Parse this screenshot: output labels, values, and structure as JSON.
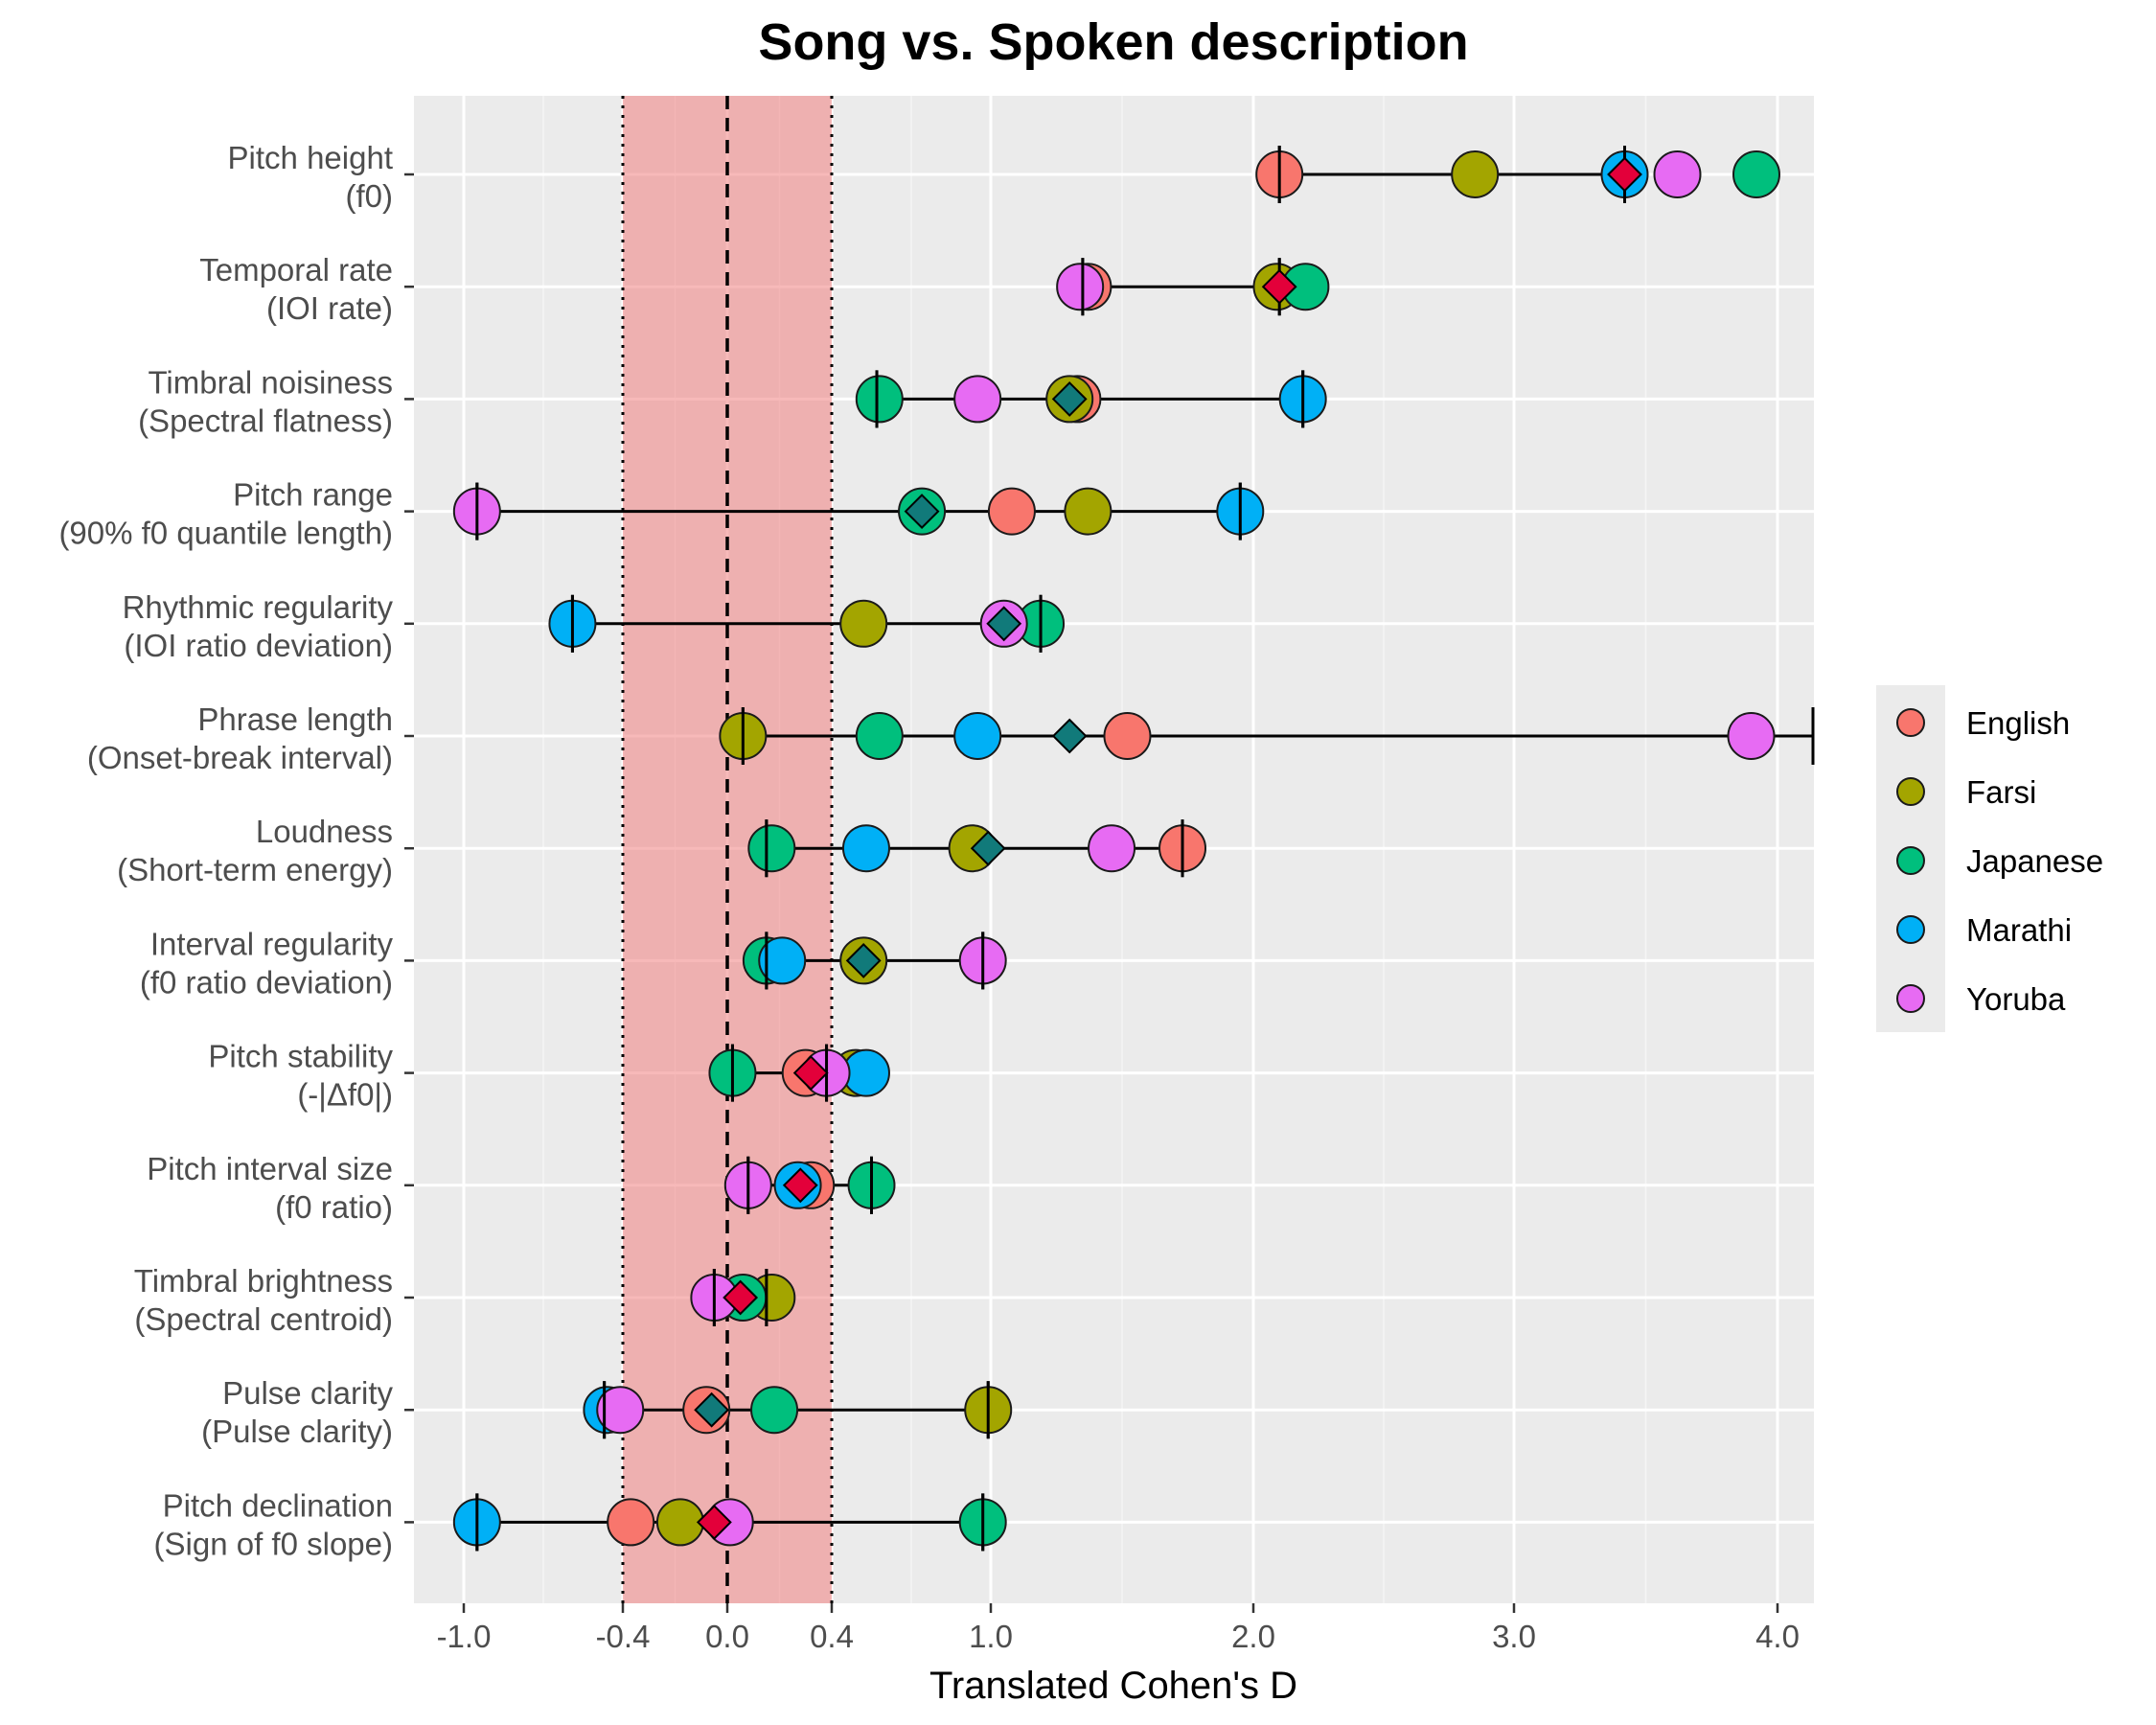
{
  "chart_data": {
    "type": "dot-range",
    "title": "Song vs. Spoken description",
    "xlabel": "Translated Cohen's D",
    "ylabel": "",
    "x_ticks": [
      {
        "v": -1.0,
        "label": "-1.0"
      },
      {
        "v": -0.4,
        "label": "-0.4"
      },
      {
        "v": 0.0,
        "label": "0.0"
      },
      {
        "v": 0.4,
        "label": "0.4"
      },
      {
        "v": 1.0,
        "label": "1.0"
      },
      {
        "v": 2.0,
        "label": "2.0"
      },
      {
        "v": 3.0,
        "label": "3.0"
      },
      {
        "v": 4.0,
        "label": "4.0"
      }
    ],
    "reference_band": [
      -0.4,
      0.4
    ],
    "grid": true,
    "legend_position": "right",
    "series": [
      {
        "name": "English",
        "color": "#F8766D"
      },
      {
        "name": "Farsi",
        "color": "#A3A500"
      },
      {
        "name": "Japanese",
        "color": "#00BF7D"
      },
      {
        "name": "Marathi",
        "color": "#00B0F6"
      },
      {
        "name": "Yoruba",
        "color": "#E76BF3"
      }
    ],
    "features": [
      {
        "line1": "Pitch height",
        "line2": "(f0)",
        "values": [
          2.1,
          2.85,
          3.92,
          3.42,
          3.62
        ],
        "ci": [
          2.1,
          3.42
        ],
        "estimate": 3.42,
        "estimate_color": "#E3003A",
        "right_open": false
      },
      {
        "line1": "Temporal rate",
        "line2": "(IOI rate)",
        "values": [
          1.37,
          2.09,
          2.2,
          null,
          1.34
        ],
        "ci": [
          1.35,
          2.1
        ],
        "estimate": 2.1,
        "estimate_color": "#E3003A",
        "right_open": false
      },
      {
        "line1": "Timbral noisiness",
        "line2": "(Spectral flatness)",
        "values": [
          1.33,
          1.3,
          0.58,
          2.19,
          0.95
        ],
        "ci": [
          0.57,
          2.19
        ],
        "estimate": 1.3,
        "estimate_color": "#117A7A",
        "right_open": false
      },
      {
        "line1": "Pitch range",
        "line2": "(90% f0 quantile length)",
        "values": [
          1.08,
          1.37,
          0.74,
          1.95,
          -0.95
        ],
        "ci": [
          -0.95,
          1.95
        ],
        "estimate": 0.74,
        "estimate_color": "#117A7A",
        "right_open": false
      },
      {
        "line1": "Rhythmic regularity",
        "line2": "(IOI ratio deviation)",
        "values": [
          null,
          0.52,
          1.19,
          -0.59,
          1.05
        ],
        "ci": [
          -0.59,
          1.19
        ],
        "estimate": 1.05,
        "estimate_color": "#117A7A",
        "right_open": false
      },
      {
        "line1": "Phrase length",
        "line2": "(Onset-break interval)",
        "values": [
          1.52,
          0.06,
          0.58,
          0.95,
          3.9
        ],
        "ci": [
          0.06,
          4.15
        ],
        "estimate": 1.3,
        "estimate_color": "#117A7A",
        "right_open": true
      },
      {
        "line1": "Loudness",
        "line2": "(Short-term energy)",
        "values": [
          1.73,
          0.93,
          0.17,
          0.53,
          1.46
        ],
        "ci": [
          0.15,
          1.73
        ],
        "estimate": 0.99,
        "estimate_color": "#117A7A",
        "right_open": false
      },
      {
        "line1": "Interval regularity",
        "line2": "(f0 ratio deviation)",
        "values": [
          null,
          0.52,
          0.15,
          0.21,
          0.97
        ],
        "ci": [
          0.15,
          0.97
        ],
        "estimate": 0.52,
        "estimate_color": "#117A7A",
        "right_open": false
      },
      {
        "line1": "Pitch stability",
        "line2": "(-|Δf0|)",
        "values": [
          0.3,
          0.49,
          0.02,
          0.53,
          0.38
        ],
        "ci": [
          0.02,
          0.38
        ],
        "estimate": 0.32,
        "estimate_color": "#E3003A",
        "right_open": false
      },
      {
        "line1": "Pitch interval size",
        "line2": "(f0 ratio)",
        "values": [
          0.32,
          null,
          0.55,
          0.27,
          0.08
        ],
        "ci": [
          0.08,
          0.55
        ],
        "estimate": 0.28,
        "estimate_color": "#E3003A",
        "right_open": false
      },
      {
        "line1": "Timbral brightness",
        "line2": "(Spectral centroid)",
        "values": [
          null,
          0.17,
          0.06,
          null,
          -0.05
        ],
        "ci": [
          -0.05,
          0.15
        ],
        "estimate": 0.05,
        "estimate_color": "#E3003A",
        "right_open": false
      },
      {
        "line1": "Pulse clarity",
        "line2": "(Pulse clarity)",
        "values": [
          -0.08,
          0.99,
          0.18,
          -0.46,
          -0.41
        ],
        "ci": [
          -0.47,
          0.99
        ],
        "estimate": -0.06,
        "estimate_color": "#117A7A",
        "right_open": false
      },
      {
        "line1": "Pitch declination",
        "line2": "(Sign of f0 slope)",
        "values": [
          -0.37,
          -0.18,
          0.97,
          -0.95,
          0.01
        ],
        "ci": [
          -0.95,
          0.97
        ],
        "estimate": -0.05,
        "estimate_color": "#E3003A",
        "right_open": false
      }
    ]
  }
}
